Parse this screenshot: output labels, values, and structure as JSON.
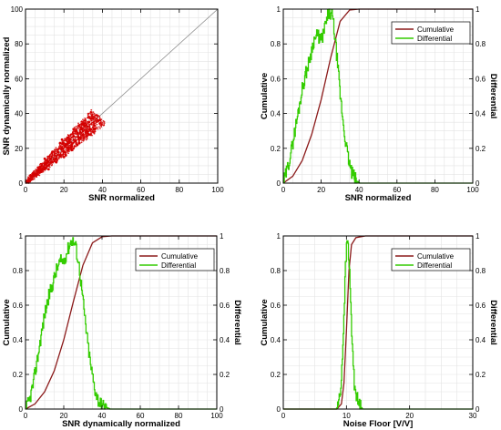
{
  "chart_data": [
    {
      "type": "scatter",
      "xlabel": "SNR normalized",
      "ylabel": "SNR dynamically normalized",
      "xlim": [
        0,
        100
      ],
      "ylim": [
        0,
        100
      ],
      "xticks": [
        0,
        20,
        40,
        60,
        80,
        100
      ],
      "yticks": [
        0,
        20,
        40,
        60,
        80,
        100
      ],
      "grid": true,
      "reference_line": {
        "x": [
          0,
          100
        ],
        "y": [
          0,
          100
        ],
        "color": "#888888"
      },
      "series": [
        {
          "color": "#d40000",
          "points": [
            [
              1,
              1
            ],
            [
              3,
              2
            ],
            [
              4,
              5
            ],
            [
              6,
              5
            ],
            [
              7,
              8
            ],
            [
              9,
              8
            ],
            [
              10,
              11
            ],
            [
              12,
              10
            ],
            [
              13,
              14
            ],
            [
              14,
              12
            ],
            [
              15,
              16
            ],
            [
              16,
              14
            ],
            [
              17,
              18
            ],
            [
              18,
              16
            ],
            [
              19,
              20
            ],
            [
              20,
              18
            ],
            [
              21,
              22
            ],
            [
              22,
              20
            ],
            [
              23,
              25
            ],
            [
              24,
              21
            ],
            [
              25,
              27
            ],
            [
              26,
              24
            ],
            [
              27,
              29
            ],
            [
              28,
              26
            ],
            [
              29,
              31
            ],
            [
              30,
              28
            ],
            [
              31,
              33
            ],
            [
              32,
              30
            ],
            [
              33,
              35
            ],
            [
              34,
              31
            ],
            [
              35,
              37
            ],
            [
              36,
              33
            ],
            [
              37,
              39
            ],
            [
              38,
              36
            ],
            [
              10,
              14
            ],
            [
              14,
              18
            ],
            [
              18,
              23
            ],
            [
              22,
              26
            ],
            [
              26,
              30
            ],
            [
              30,
              34
            ],
            [
              34,
              37
            ],
            [
              12,
              8
            ],
            [
              16,
              12
            ],
            [
              20,
              15
            ],
            [
              24,
              19
            ],
            [
              28,
              23
            ],
            [
              32,
              27
            ],
            [
              36,
              31
            ],
            [
              19,
              25
            ],
            [
              25,
              31
            ],
            [
              31,
              36
            ],
            [
              21,
              16
            ],
            [
              27,
              22
            ],
            [
              33,
              28
            ]
          ]
        }
      ]
    },
    {
      "type": "line",
      "xlabel": "SNR normalized",
      "ylabel": "Cumulative",
      "y2label": "Differential",
      "xlim": [
        0,
        100
      ],
      "ylim": [
        0,
        1
      ],
      "y2lim": [
        0,
        1
      ],
      "xticks": [
        0,
        20,
        40,
        60,
        80,
        100
      ],
      "yticks": [
        0,
        0.2,
        0.4,
        0.6,
        0.8,
        1
      ],
      "grid": true,
      "legend_position": "top-right",
      "series": [
        {
          "name": "Cumulative",
          "color": "#8b1a1a",
          "x": [
            0,
            5,
            10,
            15,
            20,
            25,
            30,
            35,
            40,
            100
          ],
          "y": [
            0,
            0.04,
            0.13,
            0.28,
            0.48,
            0.72,
            0.93,
            0.995,
            1,
            1
          ]
        },
        {
          "name": "Differential",
          "color": "#33cc00",
          "axis": "right",
          "x": [
            0,
            2,
            4,
            6,
            8,
            10,
            12,
            14,
            16,
            18,
            20,
            22,
            24,
            26,
            28,
            30,
            32,
            34,
            36,
            38,
            40,
            42,
            100
          ],
          "y": [
            0,
            0.08,
            0.18,
            0.3,
            0.42,
            0.55,
            0.64,
            0.72,
            0.82,
            0.85,
            0.82,
            0.9,
            0.98,
            0.95,
            0.75,
            0.5,
            0.3,
            0.15,
            0.06,
            0.02,
            0,
            0,
            0
          ]
        }
      ]
    },
    {
      "type": "line",
      "xlabel": "SNR dynamically normalized",
      "ylabel": "Cumulative",
      "y2label": "Differential",
      "xlim": [
        0,
        100
      ],
      "ylim": [
        0,
        1
      ],
      "y2lim": [
        0,
        1
      ],
      "xticks": [
        0,
        20,
        40,
        60,
        80,
        100
      ],
      "yticks": [
        0,
        0.2,
        0.4,
        0.6,
        0.8,
        1
      ],
      "grid": true,
      "legend_position": "top-right",
      "series": [
        {
          "name": "Cumulative",
          "color": "#8b1a1a",
          "x": [
            0,
            5,
            10,
            15,
            20,
            25,
            30,
            35,
            40,
            45,
            100
          ],
          "y": [
            0,
            0.03,
            0.1,
            0.22,
            0.4,
            0.62,
            0.83,
            0.96,
            0.995,
            1,
            1
          ]
        },
        {
          "name": "Differential",
          "color": "#33cc00",
          "axis": "right",
          "x": [
            0,
            2,
            4,
            6,
            8,
            10,
            12,
            14,
            16,
            18,
            20,
            22,
            24,
            26,
            28,
            30,
            32,
            34,
            36,
            38,
            40,
            42,
            44,
            100
          ],
          "y": [
            0,
            0.05,
            0.15,
            0.28,
            0.42,
            0.55,
            0.65,
            0.72,
            0.8,
            0.85,
            0.86,
            0.92,
            0.98,
            0.95,
            0.82,
            0.62,
            0.42,
            0.25,
            0.12,
            0.05,
            0.02,
            0.01,
            0,
            0
          ]
        }
      ]
    },
    {
      "type": "line",
      "xlabel": "Noise Floor [V/V]",
      "ylabel": "Cumulative",
      "y2label": "Differential",
      "xlim": [
        0,
        30
      ],
      "ylim": [
        0,
        1
      ],
      "y2lim": [
        0,
        1
      ],
      "xticks": [
        0,
        10,
        20,
        30
      ],
      "yticks": [
        0,
        0.2,
        0.4,
        0.6,
        0.8,
        1
      ],
      "grid": true,
      "legend_position": "top-right",
      "series": [
        {
          "name": "Cumulative",
          "color": "#8b1a1a",
          "x": [
            0,
            8.5,
            9.2,
            9.6,
            10,
            10.4,
            10.8,
            11.5,
            13,
            30
          ],
          "y": [
            0,
            0,
            0.03,
            0.15,
            0.45,
            0.8,
            0.95,
            0.99,
            1,
            1
          ]
        },
        {
          "name": "Differential",
          "color": "#33cc00",
          "axis": "right",
          "x": [
            0,
            8.4,
            9,
            9.4,
            9.8,
            10.1,
            10.4,
            10.8,
            11.2,
            11.8,
            12.5,
            30
          ],
          "y": [
            0,
            0,
            0.08,
            0.35,
            0.8,
            1,
            0.85,
            0.45,
            0.15,
            0.04,
            0,
            0
          ]
        }
      ]
    }
  ]
}
